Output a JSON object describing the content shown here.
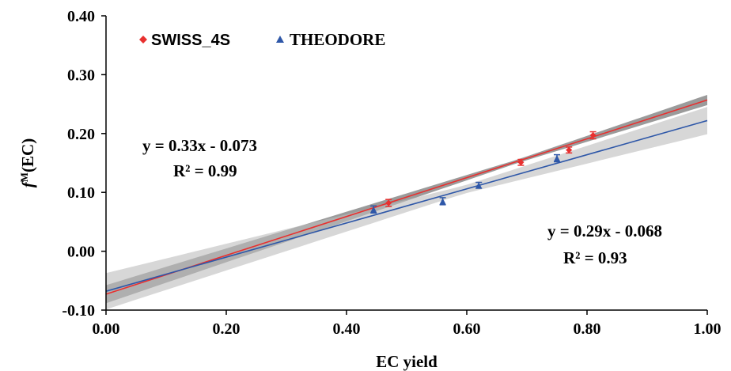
{
  "chart_data": {
    "type": "scatter",
    "xlabel": "EC yield",
    "ylabel_main": "f",
    "ylabel_sup": "M",
    "ylabel_rest": "(EC)",
    "xlim": [
      0,
      1
    ],
    "ylim": [
      -0.1,
      0.4
    ],
    "xticks": [
      "0.00",
      "0.20",
      "0.40",
      "0.60",
      "0.80",
      "1.00"
    ],
    "yticks": [
      "-0.10",
      "0.00",
      "0.10",
      "0.20",
      "0.30",
      "0.40"
    ],
    "grid": false,
    "legend_position": "top-left",
    "series": [
      {
        "name": "SWISS_4S",
        "color": "#e8302f",
        "marker": "diamond",
        "points": [
          {
            "x": 0.47,
            "y": 0.082,
            "err": 0.006
          },
          {
            "x": 0.69,
            "y": 0.151,
            "err": 0.005
          },
          {
            "x": 0.77,
            "y": 0.172,
            "err": 0.005
          },
          {
            "x": 0.81,
            "y": 0.197,
            "err": 0.006
          }
        ],
        "fit": {
          "slope": 0.33,
          "intercept": -0.073,
          "equation": "y = 0.33x - 0.073",
          "r2": "R² = 0.99"
        }
      },
      {
        "name": "THEODORE",
        "color": "#2e57a8",
        "marker": "triangle",
        "points": [
          {
            "x": 0.445,
            "y": 0.071,
            "err": 0.006
          },
          {
            "x": 0.56,
            "y": 0.085,
            "err": 0.006
          },
          {
            "x": 0.62,
            "y": 0.112,
            "err": 0.005
          },
          {
            "x": 0.75,
            "y": 0.158,
            "err": 0.006
          }
        ],
        "fit": {
          "slope": 0.29,
          "intercept": -0.068,
          "equation": "y = 0.29x - 0.068",
          "r2": "R² = 0.93"
        }
      }
    ]
  }
}
